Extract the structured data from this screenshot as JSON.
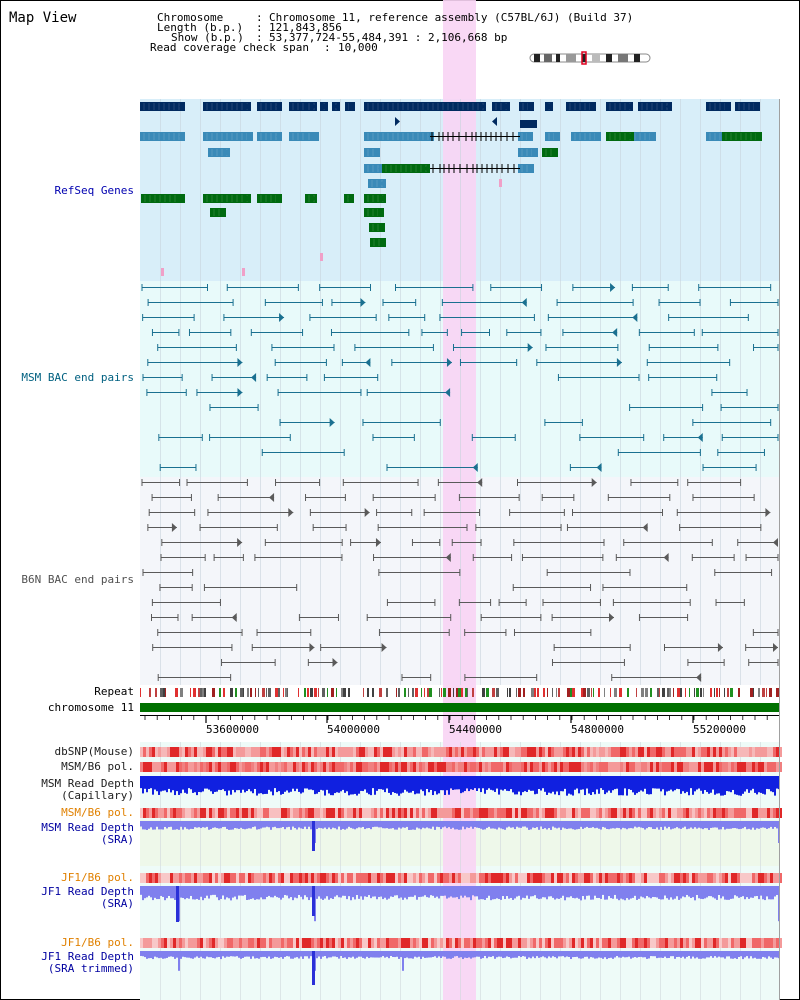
{
  "app": {
    "title": "Map View"
  },
  "header": {
    "chromosome_label": "Chromosome",
    "chromosome_value": "Chromosome 11, reference assembly (C57BL/6J) (Build 37)",
    "length_label": "Length (b.p.)",
    "length_value": "121,843,856",
    "show_label": "Show (b.p.)",
    "show_value": "53,377,724-55,484,391 : 2,106,668 bp",
    "span_label": "Read coverage check span",
    "span_value": "10,000"
  },
  "tracks": {
    "refseq": {
      "label": "RefSeq Genes",
      "color": "#0000b0",
      "bg": "#d8eef9"
    },
    "msm_bac": {
      "label": "MSM BAC end pairs",
      "color": "#006080",
      "bg": "#e8fafa"
    },
    "b6n_bac": {
      "label": "B6N BAC end pairs",
      "color": "#505050",
      "bg": "#f4f6fa"
    },
    "repeat": {
      "label": "Repeat"
    },
    "chromosome": {
      "label": "chromosome 11",
      "color": "#007000"
    },
    "dbsnp": {
      "label": "dbSNP(Mouse)"
    },
    "msm_b6_pol_1": {
      "label": "MSM/B6 pol."
    },
    "msm_depth_cap": {
      "label": "MSM Read Depth\n(Capillary)"
    },
    "msm_b6_pol_2": {
      "label": "MSM/B6 pol.",
      "color": "#e08000"
    },
    "msm_depth_sra": {
      "label": "MSM Read Depth\n(SRA)",
      "color": "#0000a0"
    },
    "jf1_b6_pol_1": {
      "label": "JF1/B6 pol.",
      "color": "#e08000"
    },
    "jf1_depth_sra": {
      "label": "JF1 Read Depth\n(SRA)",
      "color": "#0000a0"
    },
    "jf1_b6_pol_2": {
      "label": "JF1/B6 pol.",
      "color": "#e08000"
    },
    "jf1_depth_trim": {
      "label": "JF1 Read Depth\n(SRA trimmed)",
      "color": "#0000a0"
    }
  },
  "axis": {
    "ticks": [
      "53600000",
      "54000000",
      "54400000",
      "54800000",
      "55200000"
    ]
  },
  "highlight": {
    "color": "#f8d4f4"
  },
  "colors": {
    "gene_dark": "#002a60",
    "gene_mid": "#3a8ab8",
    "gene_green": "#006a10",
    "msm_line": "#1a7090",
    "b6n_line": "#5a5a5a",
    "depth_capillary": "#1020e0",
    "depth_sra": "#8080ee",
    "snp_pink": "#f09090",
    "pol_red": "#e03030"
  }
}
